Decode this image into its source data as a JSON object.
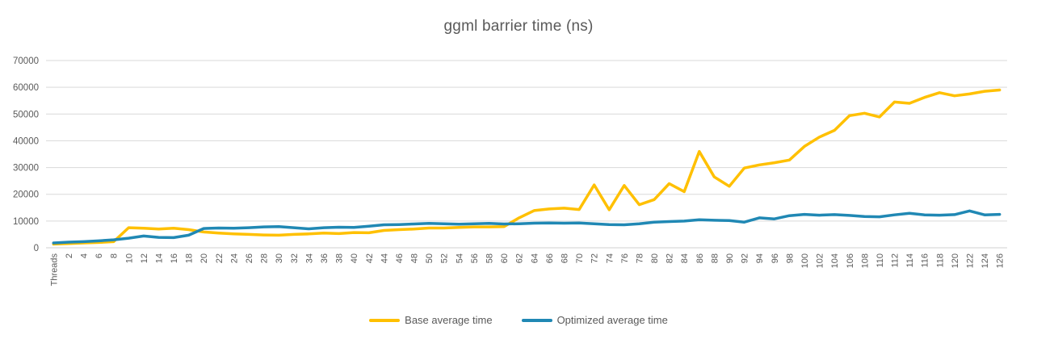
{
  "chart_data": {
    "type": "line",
    "title": "ggml barrier time (ns)",
    "xlabel": "",
    "ylabel": "",
    "categories": [
      "Threads",
      "2",
      "4",
      "6",
      "8",
      "10",
      "12",
      "14",
      "16",
      "18",
      "20",
      "22",
      "24",
      "26",
      "28",
      "30",
      "32",
      "34",
      "36",
      "38",
      "40",
      "42",
      "44",
      "46",
      "48",
      "50",
      "52",
      "54",
      "56",
      "58",
      "60",
      "62",
      "64",
      "66",
      "68",
      "70",
      "72",
      "74",
      "76",
      "78",
      "80",
      "82",
      "84",
      "86",
      "88",
      "90",
      "92",
      "94",
      "96",
      "98",
      "100",
      "102",
      "104",
      "106",
      "108",
      "110",
      "112",
      "114",
      "116",
      "118",
      "120",
      "122",
      "124",
      "126"
    ],
    "y_tick_labels": [
      "0",
      "10000",
      "20000",
      "30000",
      "40000",
      "50000",
      "60000",
      "70000"
    ],
    "y_tick_values": [
      0,
      10000,
      20000,
      30000,
      40000,
      50000,
      60000,
      70000
    ],
    "ylim": [
      0,
      70000
    ],
    "grid": true,
    "legend_position": "bottom",
    "series": [
      {
        "name": "Base average time",
        "color": "#FFC000",
        "values": [
          1400,
          1600,
          1800,
          2000,
          2300,
          7500,
          7300,
          7000,
          7300,
          6800,
          5900,
          5500,
          5200,
          5000,
          4800,
          4700,
          5000,
          5200,
          5500,
          5300,
          5700,
          5600,
          6500,
          6800,
          7000,
          7400,
          7400,
          7600,
          7800,
          7800,
          7900,
          11200,
          13900,
          14500,
          14800,
          14300,
          23500,
          14200,
          23300,
          16100,
          18000,
          24000,
          21000,
          36000,
          26500,
          23000,
          29800,
          31000,
          31800,
          32800,
          37900,
          41400,
          43900,
          49400,
          50300,
          48900,
          54500,
          54000,
          56200,
          58000,
          56800,
          57500,
          58500,
          59000
        ]
      },
      {
        "name": "Optimized average time",
        "color": "#2088B4",
        "values": [
          1800,
          2100,
          2300,
          2600,
          3000,
          3600,
          4400,
          3900,
          3800,
          4700,
          7200,
          7400,
          7300,
          7500,
          7800,
          7900,
          7500,
          7100,
          7500,
          7700,
          7600,
          8100,
          8600,
          8700,
          8900,
          9100,
          9000,
          8800,
          9000,
          9100,
          8900,
          9000,
          9200,
          9300,
          9200,
          9300,
          9000,
          8700,
          8600,
          9000,
          9600,
          9800,
          10000,
          10500,
          10300,
          10200,
          9600,
          11200,
          10800,
          12000,
          12500,
          12200,
          12400,
          12100,
          11700,
          11600,
          12300,
          12900,
          12300,
          12200,
          12400,
          13800,
          12300,
          12500
        ]
      }
    ]
  },
  "styles": {
    "title_color": "#595959",
    "tick_label_color": "#595959",
    "grid_color": "#D9D9D9",
    "zero_line_color": "#D0D0D0",
    "background": "#FFFFFF"
  }
}
